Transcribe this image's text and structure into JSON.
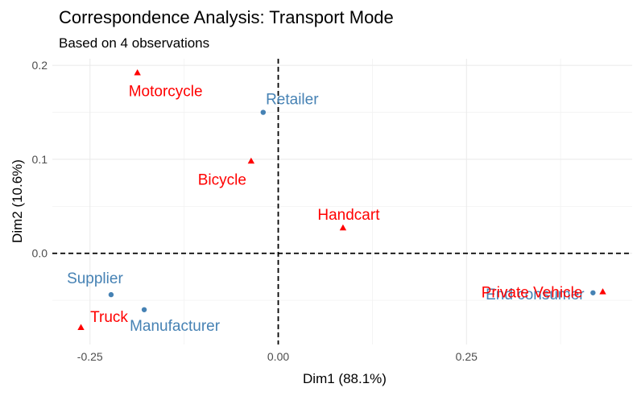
{
  "chart_data": {
    "type": "scatter",
    "title": "Correspondence Analysis: Transport Mode",
    "subtitle": "Based on 4 observations",
    "xlabel": "Dim1 (88.1%)",
    "ylabel": "Dim2 (10.6%)",
    "xlim": [
      -0.3,
      0.47
    ],
    "ylim": [
      -0.097,
      0.207
    ],
    "xticks": [
      -0.25,
      0.0,
      0.25
    ],
    "xtick_labels": [
      "-0.25",
      "0.00",
      "0.25"
    ],
    "yticks": [
      0.0,
      0.1,
      0.2
    ],
    "ytick_labels": [
      "0.0",
      "0.1",
      "0.2"
    ],
    "grid": true,
    "reference_lines": {
      "x": 0,
      "y": 0,
      "style": "dashed"
    },
    "series": [
      {
        "colour": "#4682b4",
        "marker": "circle",
        "points": [
          {
            "label": "Retailer",
            "x": -0.02,
            "y": 0.15
          },
          {
            "label": "Supplier",
            "x": -0.222,
            "y": -0.044
          },
          {
            "label": "Manufacturer",
            "x": -0.178,
            "y": -0.06
          },
          {
            "label": "End consumer",
            "x": 0.418,
            "y": -0.042
          }
        ]
      },
      {
        "colour": "#ff0000",
        "marker": "triangle",
        "points": [
          {
            "label": "Motorcycle",
            "x": -0.187,
            "y": 0.192
          },
          {
            "label": "Bicycle",
            "x": -0.036,
            "y": 0.098
          },
          {
            "label": "Handcart",
            "x": 0.086,
            "y": 0.027
          },
          {
            "label": "Truck",
            "x": -0.262,
            "y": -0.079
          },
          {
            "label": "Private Vehicle",
            "x": 0.431,
            "y": -0.041
          }
        ]
      }
    ]
  }
}
